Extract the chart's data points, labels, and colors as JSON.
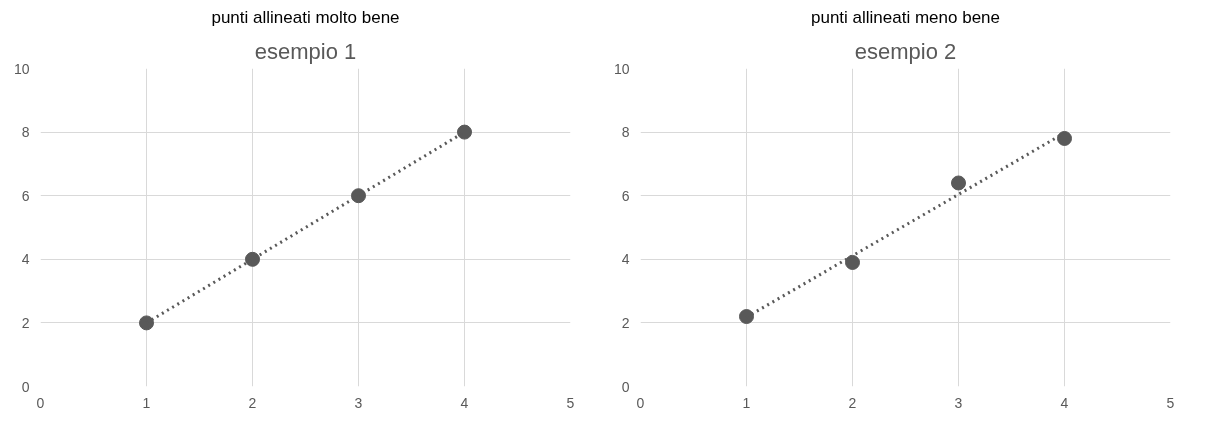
{
  "chart_data": [
    {
      "type": "scatter",
      "title": "esempio 1",
      "annotations": [
        "punti allineati molto bene"
      ],
      "xlim": [
        0,
        5
      ],
      "xticks": [
        0,
        1,
        2,
        3,
        4,
        5
      ],
      "ylim": [
        0,
        10
      ],
      "yticks": [
        0,
        2,
        4,
        6,
        8,
        10
      ],
      "grid": true,
      "series": [
        {
          "color": "#595959",
          "marker": "circle",
          "x": [
            1,
            2,
            3,
            4
          ],
          "values": [
            2,
            4,
            6,
            8
          ]
        },
        {
          "type": "line",
          "color": "#595959",
          "line_style": "dotted",
          "x": [
            1,
            4
          ],
          "values": [
            2,
            8
          ]
        }
      ]
    },
    {
      "type": "scatter",
      "title": "esempio 2",
      "annotations": [
        "punti allineati meno bene"
      ],
      "xlim": [
        0,
        5
      ],
      "xticks": [
        0,
        1,
        2,
        3,
        4,
        5
      ],
      "ylim": [
        0,
        10
      ],
      "yticks": [
        0,
        2,
        4,
        6,
        8,
        10
      ],
      "grid": true,
      "series": [
        {
          "color": "#595959",
          "marker": "circle",
          "x": [
            1,
            2,
            3,
            4
          ],
          "values": [
            2.2,
            3.9,
            6.4,
            7.8
          ]
        },
        {
          "type": "line",
          "color": "#595959",
          "line_style": "dotted",
          "x": [
            1,
            4
          ],
          "values": [
            2.18,
            7.97
          ]
        }
      ]
    }
  ]
}
